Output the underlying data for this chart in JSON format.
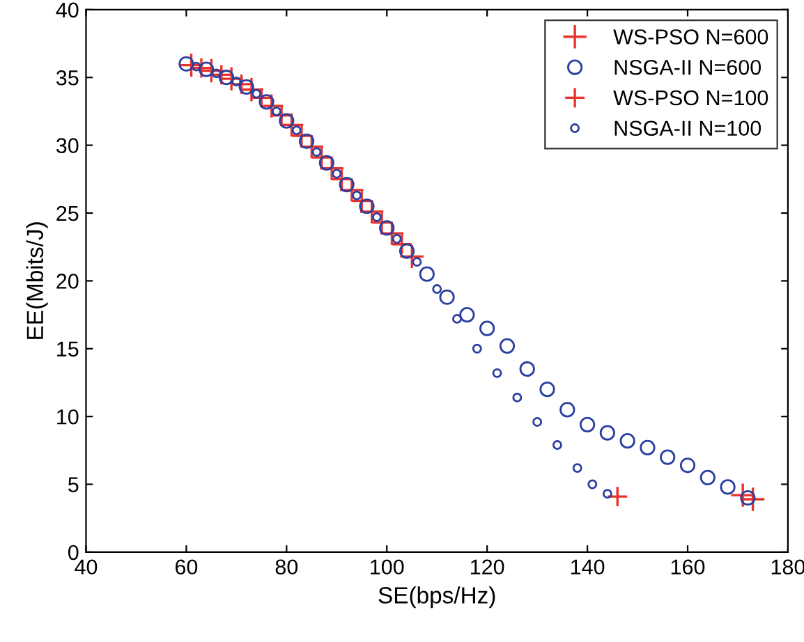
{
  "chart_data": {
    "type": "scatter",
    "xlabel": "SE(bps/Hz)",
    "ylabel": "EE(Mbits/J)",
    "xlim": [
      40,
      180
    ],
    "xticks": [
      40,
      60,
      80,
      100,
      120,
      140,
      160,
      180
    ],
    "ylim": [
      0,
      40
    ],
    "yticks": [
      0,
      5,
      10,
      15,
      20,
      25,
      30,
      35,
      40
    ],
    "grid": false,
    "legend": "top right",
    "series": [
      {
        "name": "WS-PSO N=600",
        "color": "#e8312a",
        "marker": "cross",
        "x": [
          61,
          65,
          69,
          73,
          77,
          81,
          85,
          89,
          93,
          97,
          101,
          105,
          171,
          173
        ],
        "values": [
          35.9,
          35.5,
          34.9,
          34.1,
          32.9,
          31.5,
          29.9,
          28.3,
          26.7,
          25.1,
          23.5,
          21.8,
          4.2,
          3.9
        ]
      },
      {
        "name": "NSGA-II N=600",
        "color": "#2b3fa0",
        "marker": "circle",
        "x": [
          60,
          64,
          68,
          72,
          76,
          80,
          84,
          88,
          92,
          96,
          100,
          104,
          108,
          112,
          116,
          120,
          124,
          128,
          132,
          136,
          140,
          144,
          148,
          152,
          156,
          160,
          164,
          168,
          172
        ],
        "values": [
          36,
          35.6,
          35.0,
          34.3,
          33.2,
          31.8,
          30.3,
          28.7,
          27.1,
          25.5,
          23.9,
          22.2,
          20.5,
          18.8,
          17.5,
          16.5,
          15.2,
          13.5,
          12.0,
          10.5,
          9.4,
          8.8,
          8.2,
          7.7,
          7.0,
          6.4,
          5.5,
          4.8,
          4.0
        ]
      },
      {
        "name": "WS-PSO N=100",
        "color": "#e8312a",
        "marker": "cross",
        "x": [
          63,
          67,
          71,
          75,
          79,
          83,
          87,
          91,
          95,
          99,
          103,
          146
        ],
        "values": [
          35.7,
          35.2,
          34.5,
          33.5,
          32.2,
          30.7,
          29.1,
          27.5,
          25.9,
          24.3,
          22.7,
          4.1
        ]
      },
      {
        "name": "NSGA-II N=100",
        "color": "#2b3fa0",
        "marker": "circle",
        "x": [
          62,
          66,
          70,
          74,
          78,
          82,
          86,
          90,
          94,
          98,
          102,
          106,
          110,
          114,
          118,
          122,
          126,
          130,
          134,
          138,
          141,
          144
        ],
        "values": [
          35.8,
          35.3,
          34.7,
          33.8,
          32.5,
          31.1,
          29.5,
          27.9,
          26.3,
          24.7,
          23.1,
          21.4,
          19.4,
          17.2,
          15.0,
          13.2,
          11.4,
          9.6,
          7.9,
          6.2,
          5.0,
          4.3
        ]
      }
    ]
  }
}
